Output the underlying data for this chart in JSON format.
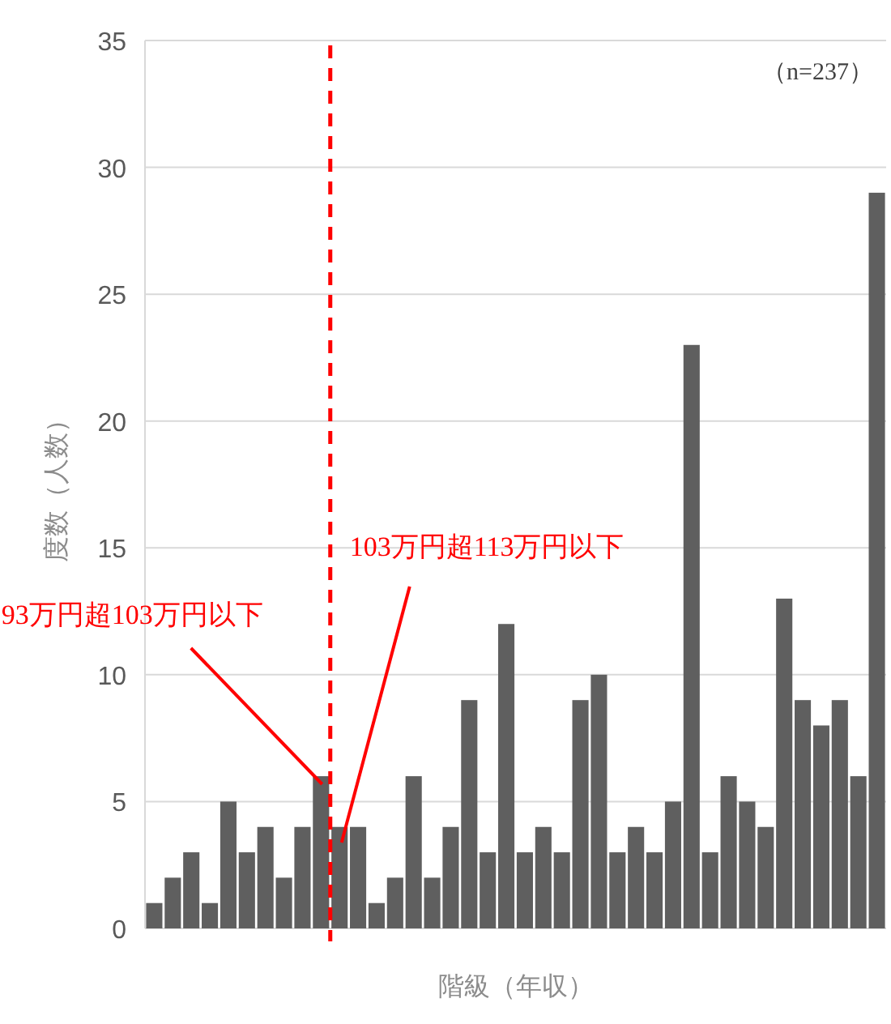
{
  "chart_data": {
    "type": "bar",
    "xlabel": "階級（年収）",
    "ylabel": "度数（人数）",
    "categories": [
      null,
      null,
      null,
      null,
      null,
      null,
      null,
      null,
      null,
      null,
      null,
      null,
      null,
      null,
      null,
      null,
      null,
      null,
      null,
      null,
      null,
      null,
      null,
      null,
      null,
      null,
      null,
      null,
      null,
      null,
      null,
      null,
      null,
      null,
      null,
      null,
      null,
      null,
      null,
      null
    ],
    "values": [
      1,
      2,
      3,
      1,
      5,
      3,
      4,
      2,
      4,
      6,
      4,
      4,
      1,
      2,
      6,
      2,
      4,
      9,
      3,
      12,
      3,
      4,
      3,
      9,
      10,
      3,
      4,
      3,
      5,
      23,
      3,
      6,
      5,
      4,
      13,
      9,
      8,
      9,
      6,
      29
    ],
    "color": "#5f5f5f",
    "ylim": [
      0,
      35
    ],
    "yticks": [
      0,
      5,
      10,
      15,
      20,
      25,
      30,
      35
    ],
    "grid": "y",
    "tick_labels": "y",
    "annotations": [
      "（n=237）",
      "93万円超103万円以下",
      "103万円超113万円以下"
    ]
  }
}
